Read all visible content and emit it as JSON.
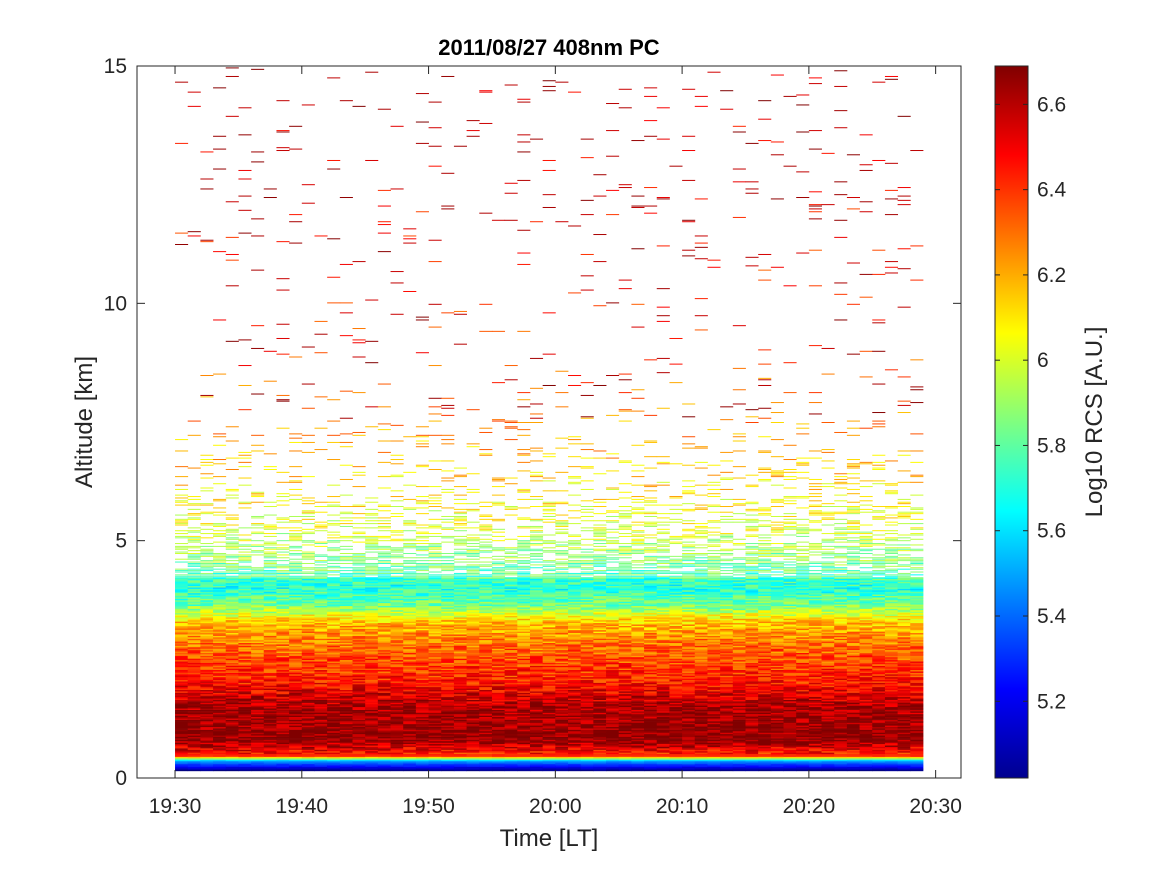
{
  "chart_data": {
    "type": "heatmap",
    "title": "2011/08/27 408nm PC",
    "xlabel": "Time [LT]",
    "ylabel": "Altitude [km]",
    "colorbar_label": "Log10 RCS [A.U.]",
    "x_tick_labels": [
      "19:30",
      "19:40",
      "19:50",
      "20:00",
      "20:10",
      "20:20",
      "20:30"
    ],
    "x_ticks_minutes": [
      0,
      10,
      20,
      30,
      40,
      50,
      60
    ],
    "xlim_minutes": [
      -3,
      62
    ],
    "data_time_range_minutes": [
      0,
      59
    ],
    "y_ticks": [
      0,
      5,
      10,
      15
    ],
    "ylim": [
      0,
      15
    ],
    "data_altitude_range_km": [
      0.15,
      15
    ],
    "colormap": "jet",
    "clim": [
      5.02,
      6.69
    ],
    "colorbar_ticks": [
      5.2,
      5.4,
      5.6,
      5.8,
      6,
      6.2,
      6.4,
      6.6
    ],
    "grid": false,
    "vertical_profile": [
      {
        "altitude_km": 0.15,
        "value": 5.05
      },
      {
        "altitude_km": 0.35,
        "value": 5.5
      },
      {
        "altitude_km": 0.45,
        "value": 6.4
      },
      {
        "altitude_km": 0.8,
        "value": 6.68
      },
      {
        "altitude_km": 1.5,
        "value": 6.62
      },
      {
        "altitude_km": 2.0,
        "value": 6.45
      },
      {
        "altitude_km": 2.8,
        "value": 6.3
      },
      {
        "altitude_km": 3.3,
        "value": 6.15
      },
      {
        "altitude_km": 3.6,
        "value": 5.85
      },
      {
        "altitude_km": 4.0,
        "value": 5.7
      },
      {
        "altitude_km": 4.5,
        "value": 5.85
      },
      {
        "altitude_km": 5.2,
        "value": 6.0
      },
      {
        "altitude_km": 6.0,
        "value": 6.1
      },
      {
        "altitude_km": 7.0,
        "value": 6.2
      },
      {
        "altitude_km": 9.0,
        "value": 6.4
      },
      {
        "altitude_km": 12.0,
        "value": 6.5
      },
      {
        "altitude_km": 15.0,
        "value": 6.6
      }
    ]
  }
}
